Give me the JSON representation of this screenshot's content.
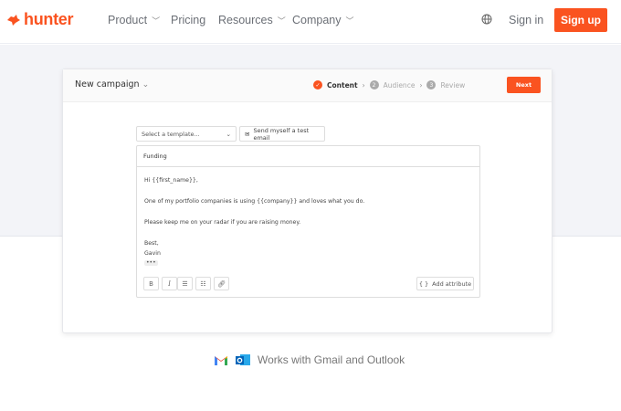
{
  "nav": {
    "brand": "hunter",
    "items": [
      {
        "label": "Product",
        "dropdown": true
      },
      {
        "label": "Pricing",
        "dropdown": false
      },
      {
        "label": "Resources",
        "dropdown": true
      },
      {
        "label": "Company",
        "dropdown": true
      }
    ],
    "globe_icon": "globe-icon",
    "signin": "Sign in",
    "signup": "Sign up",
    "accent": "#fa5320"
  },
  "card": {
    "title": "New campaign",
    "steps": [
      {
        "num": "✓",
        "label": "Content",
        "active": true
      },
      {
        "num": "2",
        "label": "Audience",
        "active": false
      },
      {
        "num": "3",
        "label": "Review",
        "active": false
      }
    ],
    "next": "Next",
    "template_placeholder": "Select a template...",
    "test_email": "Send myself a test email",
    "subject": "Funding",
    "body": [
      "Hi {{first_name}},",
      "One of my portfolio companies is using {{company}} and loves what you do.",
      "Please keep me on your radar if you are raising money.",
      "Best,",
      "Gavin"
    ],
    "more": "•••",
    "toolbar": {
      "bold": "B",
      "italic": "I",
      "add_attribute": "Add attribute"
    }
  },
  "footer": {
    "text": "Works with Gmail and Outlook"
  }
}
